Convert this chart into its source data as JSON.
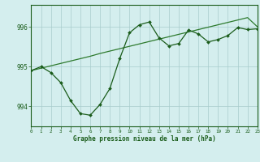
{
  "hours": [
    0,
    1,
    2,
    3,
    4,
    5,
    6,
    7,
    8,
    9,
    10,
    11,
    12,
    13,
    14,
    15,
    16,
    17,
    18,
    19,
    20,
    21,
    22,
    23
  ],
  "pressure": [
    994.9,
    995.0,
    994.85,
    994.6,
    994.15,
    993.82,
    993.78,
    994.05,
    994.45,
    995.2,
    995.85,
    996.05,
    996.12,
    995.72,
    995.52,
    995.58,
    995.92,
    995.82,
    995.62,
    995.68,
    995.78,
    995.98,
    995.93,
    995.95
  ],
  "trend": [
    994.9,
    994.96,
    995.02,
    995.08,
    995.14,
    995.2,
    995.26,
    995.33,
    995.39,
    995.45,
    995.51,
    995.57,
    995.63,
    995.69,
    995.75,
    995.81,
    995.87,
    995.93,
    995.99,
    996.05,
    996.11,
    996.17,
    996.23,
    996.0
  ],
  "line_color": "#1a5c1a",
  "trend_color": "#2d7a2d",
  "bg_color": "#d4eeee",
  "grid_color": "#a8cccc",
  "bottom_bg": "#c8e8c8",
  "xlabel": "Graphe pression niveau de la mer (hPa)",
  "ylabel_ticks": [
    994,
    995,
    996
  ],
  "xlim": [
    0,
    23
  ],
  "ylim": [
    993.5,
    996.55
  ],
  "tick_color": "#1a5c1a",
  "label_color": "#1a5c1a"
}
